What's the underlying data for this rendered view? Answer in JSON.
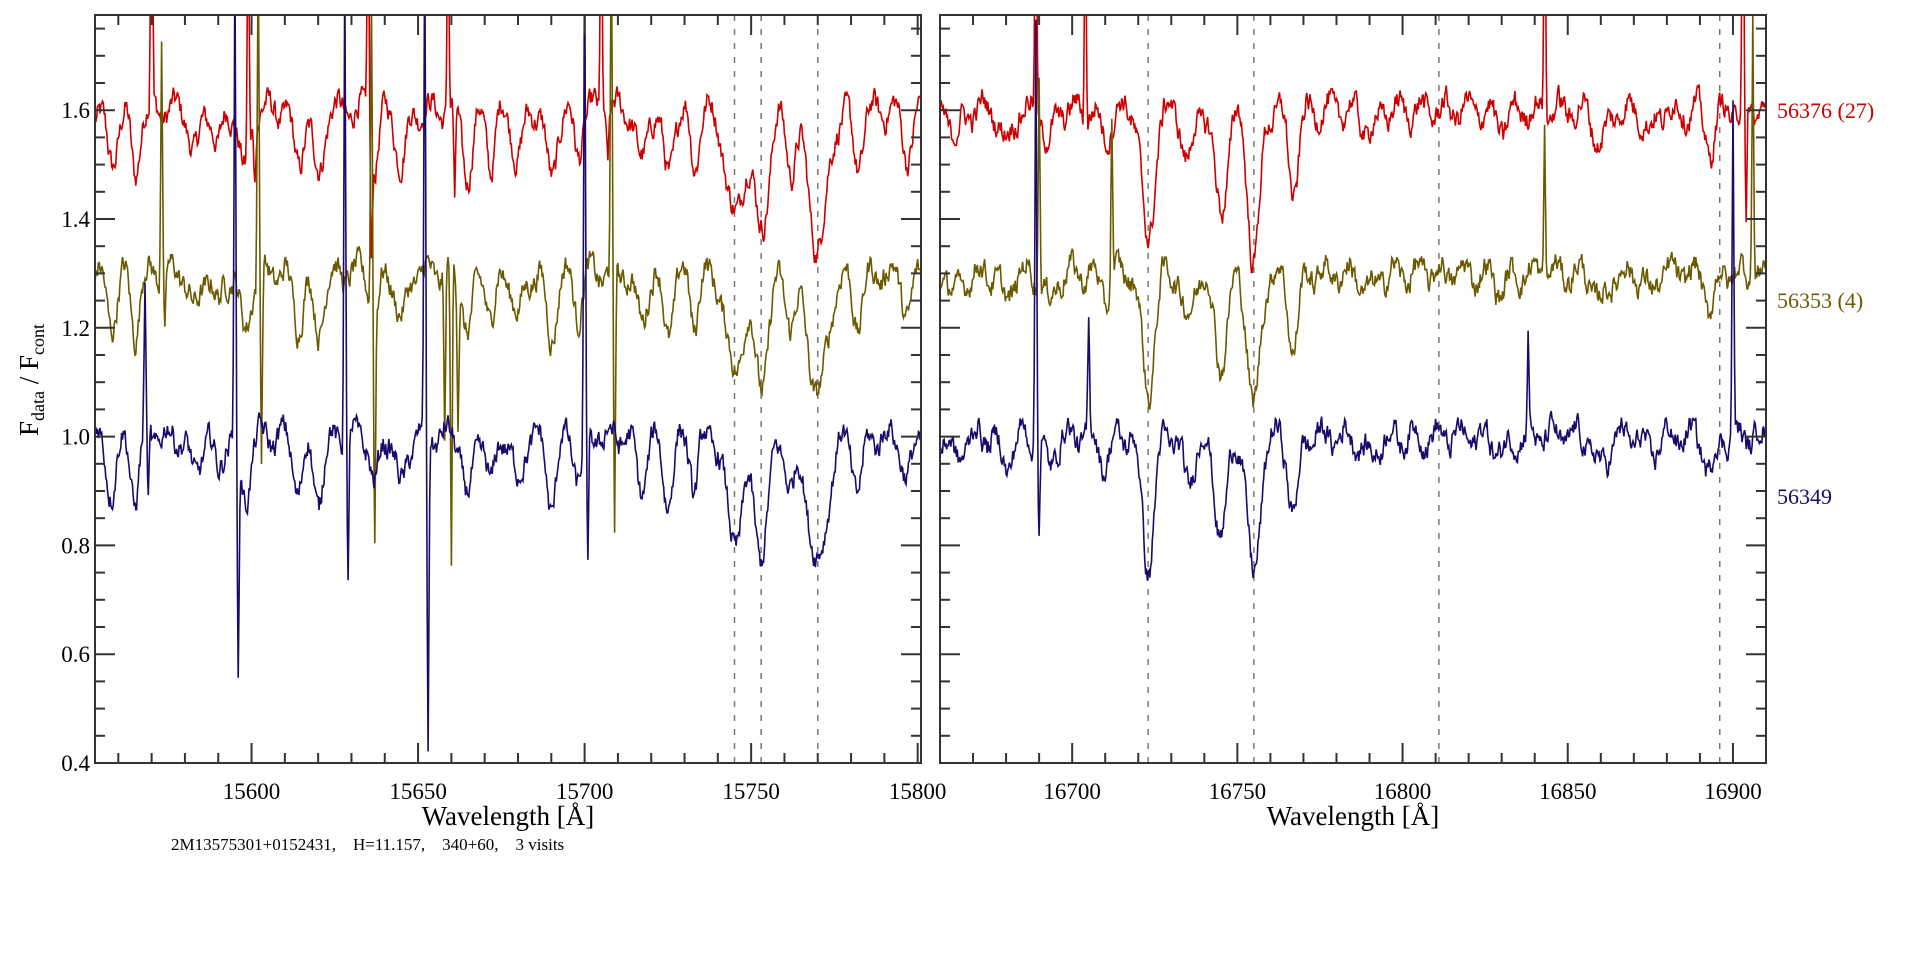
{
  "chart_data": {
    "type": "line",
    "ylabel": {
      "main": "F",
      "sub1": "data",
      "mid": " / F",
      "sub2": "cont"
    },
    "ylim": [
      0.4,
      1.775
    ],
    "yticks": [
      0.4,
      0.6,
      0.8,
      1.0,
      1.2,
      1.4,
      1.6
    ],
    "ytick_labels": [
      "0.4",
      "0.6",
      "0.8",
      "1.0",
      "1.2",
      "1.4",
      "1.6"
    ],
    "annotation": "2M13575301+0152431,    H=11.157,    340+60,    3 visits",
    "series": [
      {
        "name": "56376 (27)",
        "color": "#cc0000",
        "continuum": 1.6,
        "depth_scale": 1.0
      },
      {
        "name": "56353 (4)",
        "color": "#6b5a00",
        "continuum": 1.3,
        "depth_scale": 0.9
      },
      {
        "name": "56349",
        "color": "#1a0a6b",
        "continuum": 1.0,
        "depth_scale": 0.95
      }
    ],
    "panels": [
      {
        "xlabel": "Wavelength [Å]",
        "xlim": [
          15553,
          15801
        ],
        "xticks": [
          15600,
          15650,
          15700,
          15750,
          15800
        ],
        "xtick_labels": [
          "15600",
          "15650",
          "15700",
          "15750",
          "15800"
        ],
        "dashed_lines": [
          15745,
          15753,
          15770
        ],
        "absorption_lines": [
          [
            15558,
            0.1,
            1.5
          ],
          [
            15565,
            0.12,
            1.2
          ],
          [
            15583,
            0.08,
            1.5
          ],
          [
            15590,
            0.07,
            1.2
          ],
          [
            15598,
            0.12,
            1.5
          ],
          [
            15614,
            0.1,
            1.5
          ],
          [
            15620,
            0.12,
            1.5
          ],
          [
            15637,
            0.1,
            1.2
          ],
          [
            15645,
            0.1,
            1.5
          ],
          [
            15665,
            0.12,
            1.5
          ],
          [
            15672,
            0.1,
            1.2
          ],
          [
            15680,
            0.09,
            1.5
          ],
          [
            15690,
            0.13,
            1.5
          ],
          [
            15698,
            0.08,
            1.2
          ],
          [
            15717,
            0.1,
            1.5
          ],
          [
            15725,
            0.12,
            1.5
          ],
          [
            15733,
            0.1,
            1.2
          ],
          [
            15745,
            0.2,
            2.5
          ],
          [
            15753,
            0.22,
            2.2
          ],
          [
            15762,
            0.1,
            1.5
          ],
          [
            15770,
            0.25,
            2.8
          ],
          [
            15782,
            0.1,
            1.5
          ],
          [
            15797,
            0.08,
            1.5
          ]
        ],
        "spikes": [
          [
            [
              15570,
              0.8
            ],
            [
              15599,
              0.5
            ],
            [
              15601,
              -0.1
            ],
            [
              15635,
              0.5
            ],
            [
              15636,
              -0.2
            ],
            [
              15659,
              0.4
            ],
            [
              15661,
              -0.2
            ],
            [
              15705,
              0.5
            ],
            [
              15707,
              -0.1
            ]
          ],
          [
            [
              15573,
              0.45
            ],
            [
              15574,
              -0.12
            ],
            [
              15602,
              0.6
            ],
            [
              15603,
              -0.35
            ],
            [
              15636,
              0.6
            ],
            [
              15637,
              -0.4
            ],
            [
              15658,
              -0.3
            ],
            [
              15660,
              -0.57
            ],
            [
              15662,
              -0.25
            ],
            [
              15708,
              0.6
            ],
            [
              15709,
              -0.5
            ]
          ],
          [
            [
              15568,
              0.26
            ],
            [
              15569,
              -0.13
            ],
            [
              15595,
              0.9
            ],
            [
              15596,
              -0.42
            ],
            [
              15628,
              0.9
            ],
            [
              15629,
              -0.28
            ],
            [
              15652,
              0.9
            ],
            [
              15653,
              -0.59
            ],
            [
              15700,
              0.9
            ],
            [
              15701,
              -0.26
            ]
          ]
        ]
      },
      {
        "xlabel": "Wavelength [Å]",
        "xlim": [
          16660,
          16910
        ],
        "xticks": [
          16700,
          16750,
          16800,
          16850,
          16900
        ],
        "xtick_labels": [
          "16700",
          "16750",
          "16800",
          "16850",
          "16900"
        ],
        "dashed_lines": [
          16723,
          16755,
          16811,
          16896
        ],
        "absorption_lines": [
          [
            16665,
            0.05,
            1.5
          ],
          [
            16680,
            0.06,
            1.5
          ],
          [
            16693,
            0.06,
            1.5
          ],
          [
            16710,
            0.05,
            1.5
          ],
          [
            16723,
            0.25,
            1.8
          ],
          [
            16735,
            0.1,
            1.5
          ],
          [
            16745,
            0.18,
            2.0
          ],
          [
            16755,
            0.28,
            1.8
          ],
          [
            16767,
            0.15,
            1.5
          ],
          [
            16790,
            0.04,
            2.0
          ],
          [
            16830,
            0.03,
            2.0
          ],
          [
            16860,
            0.06,
            2.0
          ],
          [
            16875,
            0.04,
            1.5
          ],
          [
            16893,
            0.07,
            1.5
          ]
        ],
        "spikes": [
          [
            [
              16689,
              0.6
            ],
            [
              16704,
              0.4
            ],
            [
              16843,
              0.5
            ],
            [
              16903,
              0.6
            ],
            [
              16904,
              -0.25
            ]
          ],
          [
            [
              16690,
              0.4
            ],
            [
              16712,
              0.32
            ],
            [
              16843,
              0.28
            ],
            [
              16906,
              0.5
            ]
          ],
          [
            [
              16689,
              0.78
            ],
            [
              16690,
              -0.16
            ],
            [
              16705,
              0.2
            ],
            [
              16838,
              0.17
            ],
            [
              16900,
              0.6
            ]
          ]
        ]
      }
    ]
  }
}
